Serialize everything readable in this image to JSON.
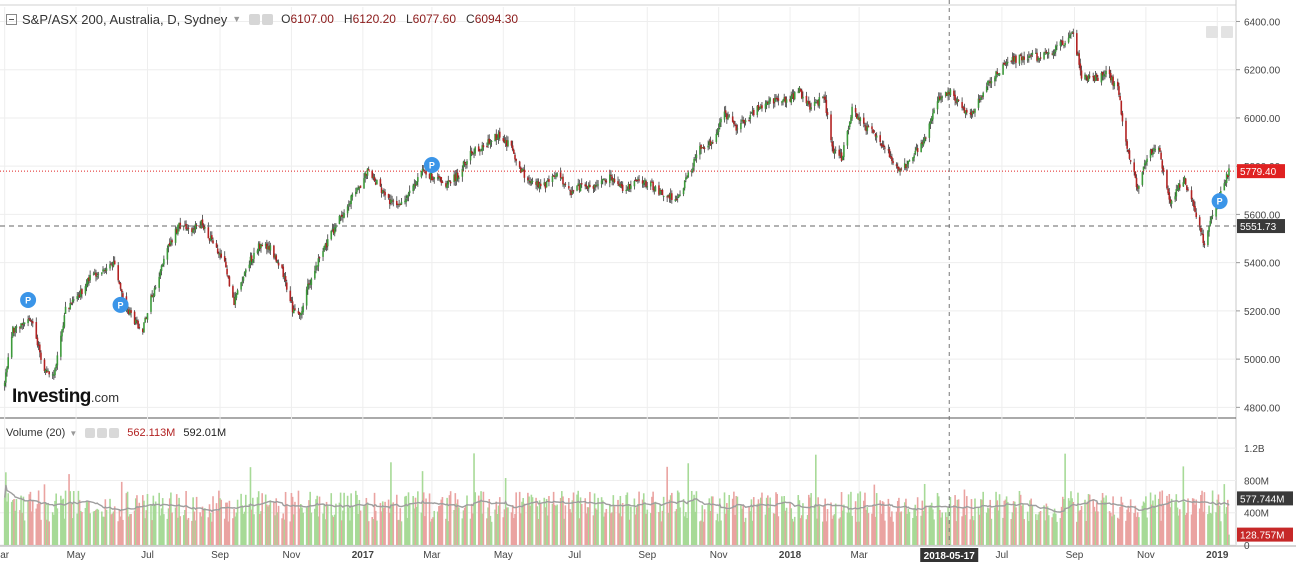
{
  "legend": {
    "title": "S&P/ASX 200, Australia, D, Sydney",
    "open_key": "O",
    "open": "6107.00",
    "high_key": "H",
    "high": "6120.20",
    "low_key": "L",
    "low": "6077.60",
    "close_key": "C",
    "close": "6094.30"
  },
  "volume_legend": {
    "title": "Volume (20)",
    "value1": "562.113M",
    "value2": "592.01M"
  },
  "logo": {
    "name": "Investing",
    "suffix": ".com"
  },
  "colors": {
    "up": "#3c9a3a",
    "down": "#b22222",
    "wick": "#3a3a3a",
    "vol_up": "#a7da97",
    "vol_down": "#eaa3a1",
    "grid": "#eeeeee",
    "current_price": "#e02121",
    "marker": "#3b95e8"
  },
  "chart_data": [
    {
      "type": "candlestick",
      "title": "S&P/ASX 200, Australia, D, Sydney",
      "x_range": [
        "2016-03-01",
        "2019-01-11"
      ],
      "ylim": [
        4760,
        6460
      ],
      "yticks": [
        "4800.00",
        "5000.00",
        "5200.00",
        "5400.00",
        "5600.00",
        "5800.00",
        "6000.00",
        "6200.00",
        "6400.00"
      ],
      "xticks": [
        {
          "label": "ar",
          "date": "2016-03-01"
        },
        {
          "label": "May",
          "date": "2016-05-01"
        },
        {
          "label": "Jul",
          "date": "2016-07-01"
        },
        {
          "label": "Sep",
          "date": "2016-09-01"
        },
        {
          "label": "Nov",
          "date": "2016-11-01"
        },
        {
          "label": "2017",
          "date": "2017-01-01",
          "bold": true
        },
        {
          "label": "Mar",
          "date": "2017-03-01"
        },
        {
          "label": "May",
          "date": "2017-05-01"
        },
        {
          "label": "Jul",
          "date": "2017-07-01"
        },
        {
          "label": "Sep",
          "date": "2017-09-01"
        },
        {
          "label": "Nov",
          "date": "2017-11-01"
        },
        {
          "label": "2018",
          "date": "2018-01-01",
          "bold": true
        },
        {
          "label": "Mar",
          "date": "2018-03-01"
        },
        {
          "label": "Jul",
          "date": "2018-07-01"
        },
        {
          "label": "Sep",
          "date": "2018-09-01"
        },
        {
          "label": "Nov",
          "date": "2018-11-01"
        },
        {
          "label": "2019",
          "date": "2019-01-01",
          "bold": true
        }
      ],
      "crosshair": {
        "date": "2018-05-17",
        "label": "2018-05-17"
      },
      "price_lines": [
        {
          "value": 5779.4,
          "label": "5779.40",
          "style": "current"
        },
        {
          "value": 5551.73,
          "label": "5551.73",
          "style": "dashed"
        }
      ],
      "markers": [
        {
          "date": "2016-03-21",
          "value": 5245,
          "label": "P"
        },
        {
          "date": "2016-06-08",
          "value": 5225,
          "label": "P"
        },
        {
          "date": "2017-03-01",
          "value": 5805,
          "label": "P"
        },
        {
          "date": "2019-01-03",
          "value": 5655,
          "label": "P"
        }
      ],
      "close_path": [
        {
          "date": "2016-03-01",
          "value": 4900
        },
        {
          "date": "2016-03-08",
          "value": 5120
        },
        {
          "date": "2016-03-15",
          "value": 5150
        },
        {
          "date": "2016-03-24",
          "value": 5170
        },
        {
          "date": "2016-04-04",
          "value": 4950
        },
        {
          "date": "2016-04-12",
          "value": 4930
        },
        {
          "date": "2016-04-22",
          "value": 5200
        },
        {
          "date": "2016-05-02",
          "value": 5250
        },
        {
          "date": "2016-05-12",
          "value": 5330
        },
        {
          "date": "2016-05-24",
          "value": 5380
        },
        {
          "date": "2016-06-03",
          "value": 5390
        },
        {
          "date": "2016-06-14",
          "value": 5200
        },
        {
          "date": "2016-06-27",
          "value": 5120
        },
        {
          "date": "2016-07-04",
          "value": 5250
        },
        {
          "date": "2016-07-18",
          "value": 5460
        },
        {
          "date": "2016-07-28",
          "value": 5560
        },
        {
          "date": "2016-08-05",
          "value": 5530
        },
        {
          "date": "2016-08-16",
          "value": 5560
        },
        {
          "date": "2016-08-26",
          "value": 5480
        },
        {
          "date": "2016-09-06",
          "value": 5380
        },
        {
          "date": "2016-09-13",
          "value": 5230
        },
        {
          "date": "2016-09-23",
          "value": 5380
        },
        {
          "date": "2016-10-04",
          "value": 5470
        },
        {
          "date": "2016-10-14",
          "value": 5460
        },
        {
          "date": "2016-10-24",
          "value": 5370
        },
        {
          "date": "2016-11-02",
          "value": 5210
        },
        {
          "date": "2016-11-09",
          "value": 5180
        },
        {
          "date": "2016-11-14",
          "value": 5290
        },
        {
          "date": "2016-11-25",
          "value": 5420
        },
        {
          "date": "2016-12-05",
          "value": 5520
        },
        {
          "date": "2016-12-19",
          "value": 5640
        },
        {
          "date": "2016-12-30",
          "value": 5720
        },
        {
          "date": "2017-01-06",
          "value": 5790
        },
        {
          "date": "2017-01-19",
          "value": 5680
        },
        {
          "date": "2017-01-31",
          "value": 5630
        },
        {
          "date": "2017-02-09",
          "value": 5690
        },
        {
          "date": "2017-02-22",
          "value": 5780
        },
        {
          "date": "2017-03-03",
          "value": 5750
        },
        {
          "date": "2017-03-14",
          "value": 5720
        },
        {
          "date": "2017-03-24",
          "value": 5770
        },
        {
          "date": "2017-04-04",
          "value": 5860
        },
        {
          "date": "2017-04-13",
          "value": 5880
        },
        {
          "date": "2017-04-27",
          "value": 5930
        },
        {
          "date": "2017-05-08",
          "value": 5880
        },
        {
          "date": "2017-05-16",
          "value": 5780
        },
        {
          "date": "2017-05-25",
          "value": 5740
        },
        {
          "date": "2017-06-05",
          "value": 5720
        },
        {
          "date": "2017-06-16",
          "value": 5770
        },
        {
          "date": "2017-06-27",
          "value": 5690
        },
        {
          "date": "2017-07-06",
          "value": 5720
        },
        {
          "date": "2017-07-20",
          "value": 5710
        },
        {
          "date": "2017-08-01",
          "value": 5760
        },
        {
          "date": "2017-08-11",
          "value": 5700
        },
        {
          "date": "2017-08-24",
          "value": 5740
        },
        {
          "date": "2017-09-05",
          "value": 5720
        },
        {
          "date": "2017-09-15",
          "value": 5680
        },
        {
          "date": "2017-09-27",
          "value": 5670
        },
        {
          "date": "2017-10-06",
          "value": 5760
        },
        {
          "date": "2017-10-16",
          "value": 5880
        },
        {
          "date": "2017-10-26",
          "value": 5900
        },
        {
          "date": "2017-11-06",
          "value": 6020
        },
        {
          "date": "2017-11-16",
          "value": 5960
        },
        {
          "date": "2017-11-28",
          "value": 6010
        },
        {
          "date": "2017-12-07",
          "value": 6050
        },
        {
          "date": "2017-12-19",
          "value": 6080
        },
        {
          "date": "2017-12-28",
          "value": 6070
        },
        {
          "date": "2018-01-09",
          "value": 6110
        },
        {
          "date": "2018-01-19",
          "value": 6040
        },
        {
          "date": "2018-01-30",
          "value": 6090
        },
        {
          "date": "2018-02-07",
          "value": 5860
        },
        {
          "date": "2018-02-14",
          "value": 5830
        },
        {
          "date": "2018-02-23",
          "value": 6040
        },
        {
          "date": "2018-03-06",
          "value": 5960
        },
        {
          "date": "2018-03-15",
          "value": 5930
        },
        {
          "date": "2018-03-26",
          "value": 5860
        },
        {
          "date": "2018-04-05",
          "value": 5780
        },
        {
          "date": "2018-04-16",
          "value": 5840
        },
        {
          "date": "2018-04-26",
          "value": 5920
        },
        {
          "date": "2018-05-08",
          "value": 6070
        },
        {
          "date": "2018-05-17",
          "value": 6110
        },
        {
          "date": "2018-05-29",
          "value": 6040
        },
        {
          "date": "2018-06-07",
          "value": 6020
        },
        {
          "date": "2018-06-19",
          "value": 6150
        },
        {
          "date": "2018-06-29",
          "value": 6200
        },
        {
          "date": "2018-07-11",
          "value": 6240
        },
        {
          "date": "2018-07-23",
          "value": 6260
        },
        {
          "date": "2018-08-02",
          "value": 6250
        },
        {
          "date": "2018-08-13",
          "value": 6280
        },
        {
          "date": "2018-08-24",
          "value": 6320
        },
        {
          "date": "2018-08-31",
          "value": 6350
        },
        {
          "date": "2018-09-07",
          "value": 6180
        },
        {
          "date": "2018-09-18",
          "value": 6160
        },
        {
          "date": "2018-09-28",
          "value": 6190
        },
        {
          "date": "2018-10-08",
          "value": 6120
        },
        {
          "date": "2018-10-15",
          "value": 5900
        },
        {
          "date": "2018-10-25",
          "value": 5700
        },
        {
          "date": "2018-11-02",
          "value": 5840
        },
        {
          "date": "2018-11-12",
          "value": 5880
        },
        {
          "date": "2018-11-21",
          "value": 5650
        },
        {
          "date": "2018-12-03",
          "value": 5750
        },
        {
          "date": "2018-12-12",
          "value": 5640
        },
        {
          "date": "2018-12-21",
          "value": 5470
        },
        {
          "date": "2018-12-28",
          "value": 5600
        },
        {
          "date": "2019-01-04",
          "value": 5700
        },
        {
          "date": "2019-01-11",
          "value": 5779
        }
      ]
    },
    {
      "type": "bar",
      "title": "Volume (20)",
      "ylim": [
        0,
        1450000000
      ],
      "yticks": [
        "0",
        "400M",
        "800M",
        "1.2B"
      ],
      "sma_period": 20,
      "typical_volume": 520000000,
      "current_value": {
        "value": 577744000,
        "label": "577.744M"
      },
      "last_bar": {
        "value": 128757000,
        "label": "128.757M"
      }
    }
  ]
}
